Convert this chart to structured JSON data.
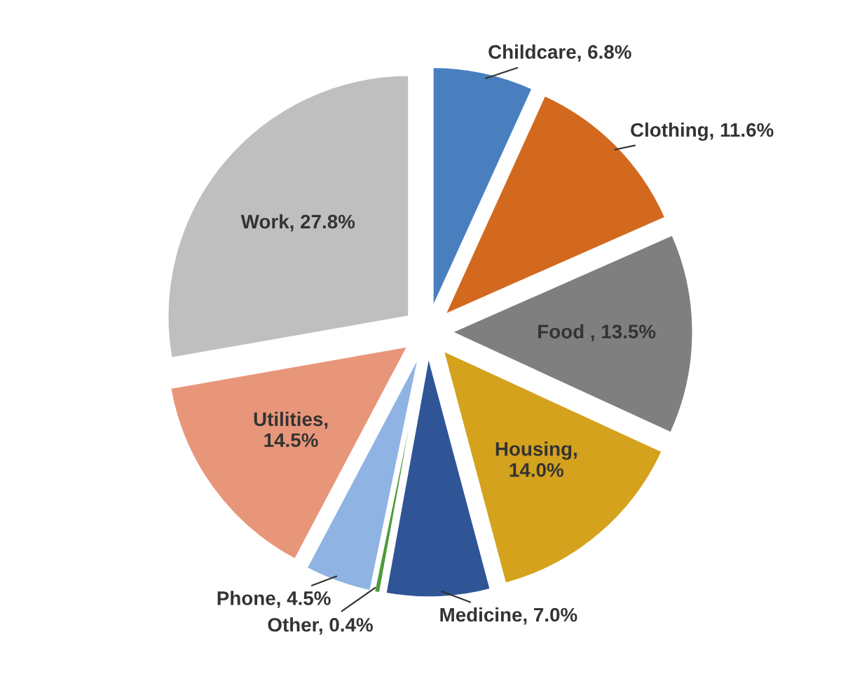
{
  "chart_data": {
    "type": "pie",
    "categories": [
      "Childcare, 6.8%",
      "Clothing, 11.6%",
      "Food , 13.5%",
      "Housing,\n14.0%",
      "Medicine, 7.0%",
      "Other, 0.4%",
      "Phone, 4.5%",
      "Utilities,\n14.5%",
      "Work, 27.8%"
    ],
    "values": [
      6.8,
      11.6,
      13.5,
      14.0,
      7.0,
      0.4,
      4.5,
      14.5,
      27.8
    ],
    "colors": [
      "#4a7fbf",
      "#d2691e",
      "#7f7f7f",
      "#d4a21c",
      "#2f5597",
      "#4e9a3a",
      "#8fb4e3",
      "#e8967a",
      "#bfbfbf"
    ],
    "legend": false
  }
}
